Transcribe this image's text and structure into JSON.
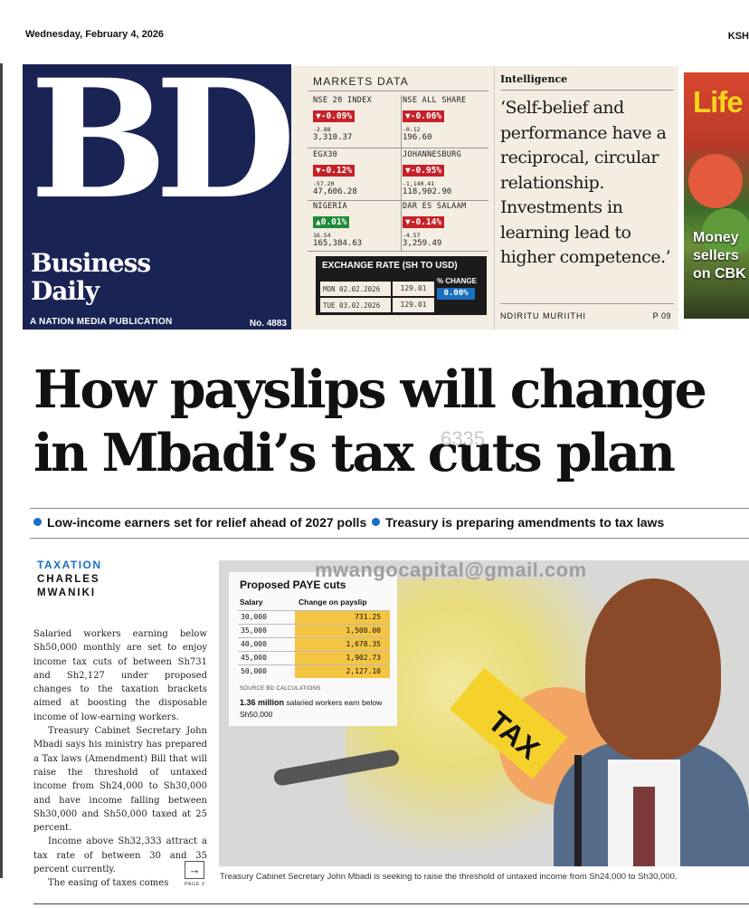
{
  "header": {
    "date": "Wednesday, February 4, 2026",
    "currency_abbr": "KSH"
  },
  "masthead": {
    "logo_text": "BD",
    "name_line1": "Business",
    "name_line2": "Daily",
    "publisher": "A NATION MEDIA PUBLICATION",
    "issue_no": "No. 4883",
    "bg_color": "#1a2454"
  },
  "markets": {
    "title": "MARKETS DATA",
    "indices": [
      {
        "name": "NSE 20 INDEX",
        "change": "▼-0.09%",
        "dir": "down",
        "delta": "-2.88",
        "value": "3,310.37"
      },
      {
        "name": "NSE ALL SHARE",
        "change": "▼-0.06%",
        "dir": "down",
        "delta": "-0.12",
        "value": "196.60"
      },
      {
        "name": "EGX30",
        "change": "▼-0.12%",
        "dir": "down",
        "delta": "-57.20",
        "value": "47,606.28"
      },
      {
        "name": "JOHANNESBURG",
        "change": "▼-0.95%",
        "dir": "down",
        "delta": "-1,140.41",
        "value": "118,902.90"
      },
      {
        "name": "NIGERIA",
        "change": "▲0.01%",
        "dir": "up",
        "delta": "16.54",
        "value": "165,384.63"
      },
      {
        "name": "DAR ES SALAAM",
        "change": "▼-0.14%",
        "dir": "down",
        "delta": "-4.57",
        "value": "3,259.49"
      }
    ],
    "exchange": {
      "title": "EXCHANGE RATE (SH TO USD)",
      "rows": [
        {
          "date": "MON 02.02.2026",
          "rate": "129.01"
        },
        {
          "date": "TUE 03.02.2026",
          "rate": "129.01"
        }
      ],
      "change_label": "% CHANGE",
      "change_value": "0.00%"
    },
    "colors": {
      "down": "#c62129",
      "up": "#1f8a3a",
      "accent": "#1a6fc1"
    }
  },
  "intelligence": {
    "label": "Intelligence",
    "quote": "‘Self-belief and performance have a reciprocal, circular relationship. Investments in learning lead to higher competence.’",
    "author": "NDIRITU MURIITHI",
    "page": "P 09"
  },
  "teaser": {
    "word": "Life",
    "text_line1": "Money",
    "text_line2": "sellers",
    "text_line3": "on CBK"
  },
  "headline": {
    "line1": "How payslips will change",
    "line2": "in Mbadi’s tax cuts plan",
    "watermark": "6335"
  },
  "bullets": [
    "Low-income earners set for relief ahead of 2027 polls",
    "Treasury is preparing amendments to tax laws"
  ],
  "byline": {
    "section": "TAXATION",
    "author_line1": "CHARLES",
    "author_line2": "MWANIKI"
  },
  "body": {
    "p1": "Salaried workers earning below Sh50,000 monthly are set to enjoy income tax cuts of between Sh731 and Sh2,127 under proposed changes to the taxation brackets aimed at boosting the disposable income of low-earning workers.",
    "p2": "Treasury Cabinet Secretary John Mbadi says his ministry has prepared a Tax laws (Amendment) Bill that will raise the threshold of untaxed income from Sh24,000 to Sh30,000 and have income falling between Sh30,000 and Sh50,000 taxed at 25 percent.",
    "p3": "Income above Sh32,333 attract a tax rate of between 30 and 35 percent currently.",
    "p4": "The easing of taxes comes",
    "arrow": "→",
    "page_ref": "PAGE 2"
  },
  "photo": {
    "watermark": "mwangocapital@gmail.com",
    "tax_word": "TAX",
    "caption": "Treasury Cabinet Secretary John Mbadi is seeking to raise the threshold of untaxed income from Sh24,000 to Sh30,000."
  },
  "paye_table": {
    "title": "Proposed PAYE cuts",
    "col_salary": "Salary",
    "col_change": "Change on payslip",
    "rows": [
      {
        "salary": "30,000",
        "change": "731.25"
      },
      {
        "salary": "35,000",
        "change": "1,500.00"
      },
      {
        "salary": "40,000",
        "change": "1,678.35"
      },
      {
        "salary": "45,000",
        "change": "1,902.73"
      },
      {
        "salary": "50,000",
        "change": "2,127.10"
      }
    ],
    "source": "SOURCE BD CALCULATIONS",
    "stat_bold": "1.36 million",
    "stat_text": " salaried workers earn below",
    "stat_line2": "Sh50,000"
  }
}
